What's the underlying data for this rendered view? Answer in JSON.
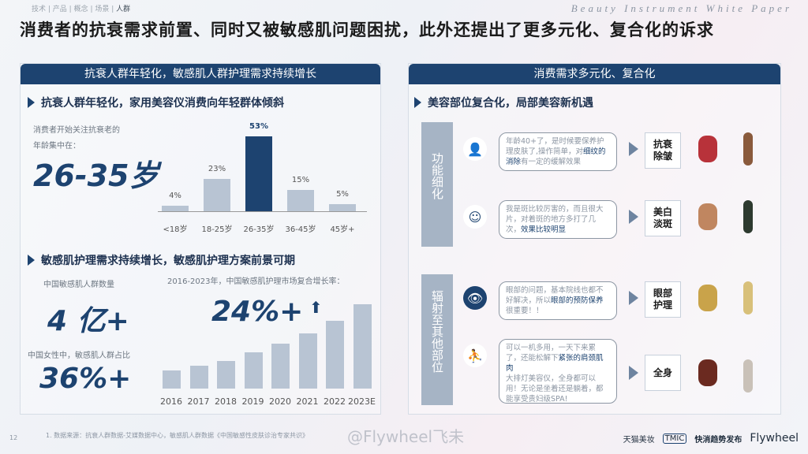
{
  "nav": {
    "items": [
      "技术",
      "产品",
      "概念",
      "场景"
    ],
    "active": "人群"
  },
  "brand": "Beauty Instrument White Paper",
  "title": "消费者的抗衰需求前置、同时又被敏感肌问题困扰，此外还提出了更多元化、复合化的诉求",
  "left": {
    "header": "抗衰人群年轻化，敏感肌人群护理需求持续增长",
    "sec1": {
      "title": "抗衰人群年轻化，家用美容仪消费向年轻群体倾斜",
      "note1": "消费者开始关注抗衰老的",
      "note2": "年龄集中在：",
      "big": "26-35岁"
    },
    "sec2": {
      "title": "敏感肌护理需求持续增长，敏感肌护理方案前景可期",
      "note1": "中国敏感肌人群数量",
      "big1": "4 亿+",
      "note2": "中国女性中，敏感肌人群占比",
      "big2": "36%+",
      "chart_note": "2016-2023年，中国敏感肌护理市场复合增长率：",
      "big3": "24%+"
    }
  },
  "chart_data": [
    {
      "type": "bar",
      "categories": [
        "<18岁",
        "18-25岁",
        "26-35岁",
        "36-45岁",
        "45岁+"
      ],
      "values": [
        4,
        23,
        53,
        15,
        5
      ],
      "labels": [
        "4%",
        "23%",
        "53%",
        "15%",
        "5%"
      ],
      "highlight": "26-35岁",
      "highlight_color": "#1d4370",
      "bar_color": "#b8c4d3"
    },
    {
      "type": "bar",
      "categories": [
        "2016",
        "2017",
        "2018",
        "2019",
        "2020",
        "2021",
        "2022",
        "2023E"
      ],
      "values": [
        23,
        29,
        35,
        46,
        57,
        70,
        86,
        107
      ],
      "bar_color": "#b8c4d3",
      "trend": "up"
    }
  ],
  "right": {
    "header": "消费需求多元化、复合化",
    "sec": "美容部位复合化，局部美容新机遇",
    "groups": [
      {
        "label": "功能细化"
      },
      {
        "label": "辐射至其他部位"
      }
    ],
    "rows": [
      {
        "icon": "woman-icon",
        "text": "年龄40+了，是时候要保养护理皮肤了,操作简单，对",
        "em": "细纹的消除",
        "text2": "有一定的缓解效果",
        "tag": "抗衰除皱"
      },
      {
        "icon": "face-mask-icon",
        "text": "我是斑比较厉害的，而且很大片，对着斑的地方多打了几次，",
        "em": "效果比较明显",
        "text2": "",
        "tag": "美白淡斑"
      },
      {
        "icon": "eye-icon",
        "text": "眼部的问题，基本院线也都不好解决，所以",
        "em": "眼部的预防保养",
        "text2": "很重要！！",
        "tag": "眼部护理"
      },
      {
        "icon": "body-icon",
        "text": "可以一机多用，一天下来累了，还能松解下",
        "em": "紧张的肩颈肌肉",
        "text2": "大排灯美容仪，全身都可以用！无论是坐着还是躺着，都能享受贵妇级SPA!",
        "tag": "全身"
      }
    ]
  },
  "footer": {
    "page": "12",
    "source": "1. 数据来源：抗衰人群数据-艾媒数据中心，敏感肌人群数据《中国敏感性皮肤诊治专家共识》",
    "watermark": "@Flywheel飞未",
    "logos": [
      "天猫美妆",
      "TMIC",
      "快消趋势发布",
      "Flywheel"
    ]
  }
}
